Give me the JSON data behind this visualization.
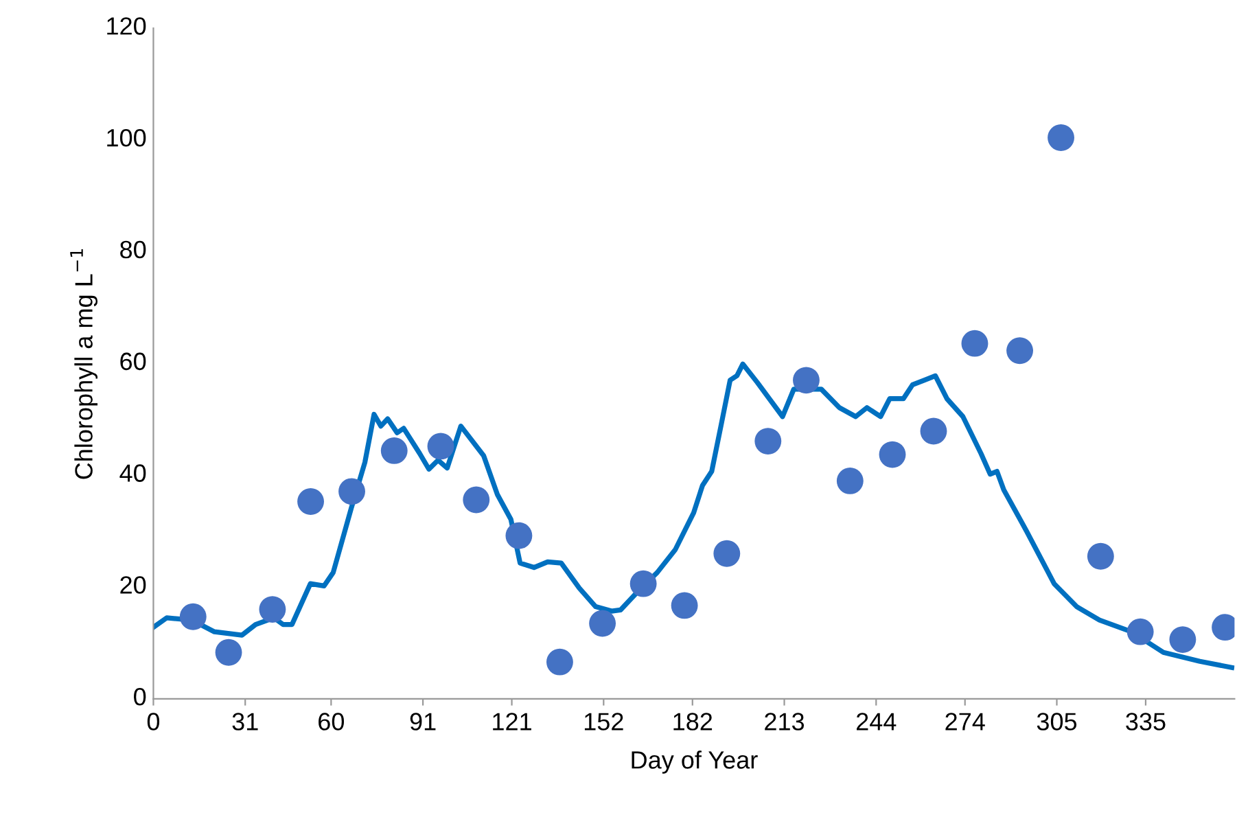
{
  "chart_data": {
    "type": "line",
    "xlabel": "Day of Year",
    "ylabel": "Chlorophyll a mg L$^{−1}$",
    "xlim": [
      0,
      365
    ],
    "xticks": [
      0,
      31,
      60,
      91,
      121,
      152,
      182,
      213,
      244,
      274,
      305,
      335
    ],
    "ylim": [
      0,
      120
    ],
    "yticks": [
      0,
      20,
      40,
      60,
      80,
      100,
      120
    ],
    "grid": false,
    "legend": false,
    "series": [
      {
        "color": "#0070c0",
        "line_style": "solid",
        "marker": "none",
        "x": [
          0,
          4.5,
          12.9,
          20.6,
          29.9,
          34.5,
          40.7,
          43.8,
          46.8,
          53,
          57.6,
          60.7,
          66.8,
          71.4,
          74.5,
          76.8,
          79.1,
          82.3,
          84.5,
          89.9,
          93,
          96.1,
          99.2,
          103.8,
          111.5,
          116.1,
          120.7,
          123.8,
          128.5,
          133.1,
          137.7,
          143.8,
          149.3,
          154.7,
          157.7,
          163.9,
          170.1,
          176.2,
          182.4,
          185.4,
          188.5,
          191.6,
          194.7,
          197,
          199,
          203.9,
          212.4,
          216.2,
          225.5,
          231.6,
          237.1,
          240.9,
          245.5,
          248.6,
          253.2,
          256.3,
          260.2,
          264,
          267.9,
          273.3,
          279.4,
          282.5,
          284.8,
          287.1,
          294.8,
          304.1,
          311.7,
          319.4,
          330.2,
          341,
          353.3,
          364.1
        ],
        "values": [
          12.8,
          14.5,
          14.1,
          12.0,
          11.4,
          13.3,
          14.5,
          13.3,
          13.3,
          20.6,
          20.2,
          22.6,
          34.1,
          42.3,
          50.9,
          48.8,
          50.1,
          47.6,
          48.4,
          43.9,
          41.1,
          42.7,
          41.3,
          48.8,
          43.5,
          36.6,
          32.1,
          24.3,
          23.5,
          24.5,
          24.3,
          19.8,
          16.5,
          15.7,
          15.9,
          19.4,
          22.6,
          26.7,
          33.3,
          38.2,
          40.7,
          48.8,
          57.0,
          57.8,
          59.9,
          56.6,
          50.5,
          55.4,
          55.4,
          52.1,
          50.5,
          52.1,
          50.5,
          53.7,
          53.7,
          56.2,
          57.0,
          57.8,
          53.7,
          50.5,
          43.9,
          40.2,
          40.7,
          37.4,
          30.0,
          20.6,
          16.5,
          14.1,
          12.0,
          8.3,
          6.7,
          5.6
        ]
      },
      {
        "type": "scatter",
        "color": "#4472c4",
        "marker": "circle",
        "x": [
          13.4,
          25.4,
          40.2,
          53.1,
          67,
          81.3,
          97,
          109,
          123.4,
          137.2,
          151.6,
          165.4,
          179.3,
          193.6,
          207.5,
          220.4,
          235.2,
          249.5,
          263.4,
          277.3,
          292.5,
          306.4,
          319.8,
          333.2,
          347.5,
          361.8
        ],
        "values": [
          14.7,
          8.3,
          16.0,
          35.3,
          37.1,
          44.4,
          45.2,
          35.6,
          29.2,
          6.6,
          13.5,
          20.6,
          16.7,
          26.0,
          46.1,
          57.0,
          39.0,
          43.7,
          47.9,
          63.6,
          62.3,
          100.4,
          25.5,
          12.0,
          10.6,
          12.8
        ]
      }
    ]
  }
}
